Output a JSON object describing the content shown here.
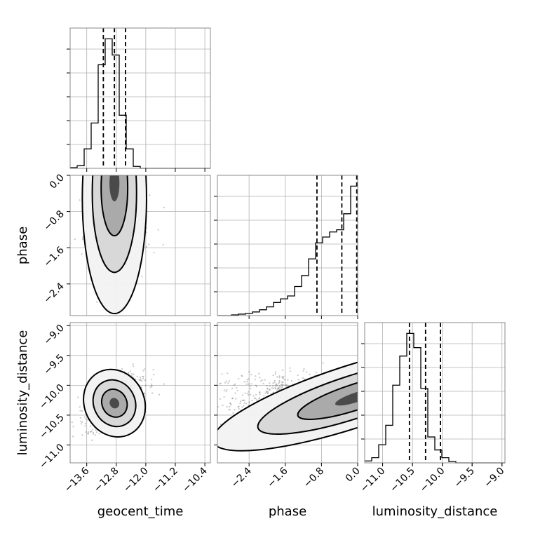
{
  "chart_data": {
    "type": "corner",
    "parameters": [
      "geocent_time",
      "phase",
      "luminosity_distance"
    ],
    "axes": {
      "geocent_time": {
        "label": "geocent_time",
        "range": [
          -14.05,
          -10.25
        ],
        "ticks": [
          -13.6,
          -12.8,
          -12.0,
          -11.2,
          -10.4
        ],
        "tick_labels": [
          "−13.6",
          "−12.8",
          "−12.0",
          "−11.2",
          "−10.4"
        ]
      },
      "phase": {
        "label": "phase",
        "range": [
          -3.1,
          0.0
        ],
        "ticks": [
          -2.4,
          -1.6,
          -0.8,
          0.0
        ],
        "tick_labels": [
          "−2.4",
          "−1.6",
          "−0.8",
          "0.0"
        ]
      },
      "luminosity_distance": {
        "label": "luminosity_distance",
        "range": [
          -11.3,
          -8.95
        ],
        "ticks": [
          -11.0,
          -10.5,
          -10.0,
          -9.5,
          -9.0
        ],
        "tick_labels": [
          "−11.0",
          "−10.5",
          "−10.0",
          "−9.5",
          "−9.0"
        ]
      }
    },
    "histograms": {
      "geocent_time": {
        "edges": [
          -14.05,
          -13.86,
          -13.67,
          -13.48,
          -13.29,
          -13.1,
          -12.91,
          -12.72,
          -12.53,
          -12.34,
          -12.15,
          -11.96,
          -11.77,
          -11.58,
          -11.39,
          -11.2,
          -11.01,
          -10.82,
          -10.63,
          -10.44,
          -10.25
        ],
        "counts": [
          1,
          4,
          30,
          70,
          160,
          200,
          175,
          82,
          30,
          3,
          0,
          0,
          0,
          0,
          0,
          0,
          0,
          0,
          0,
          0
        ],
        "quantiles": [
          -13.15,
          -12.85,
          -12.55
        ]
      },
      "phase": {
        "edges": [
          -3.1,
          -2.945,
          -2.79,
          -2.635,
          -2.48,
          -2.325,
          -2.17,
          -2.015,
          -1.86,
          -1.705,
          -1.55,
          -1.395,
          -1.24,
          -1.085,
          -0.93,
          -0.775,
          -0.62,
          -0.465,
          -0.31,
          -0.155,
          0.0
        ],
        "counts": [
          0,
          0,
          1,
          2,
          3,
          5,
          8,
          12,
          18,
          23,
          27,
          40,
          55,
          78,
          100,
          108,
          115,
          118,
          140,
          178
        ],
        "quantiles": [
          -0.9,
          -0.35,
          -0.02
        ]
      },
      "luminosity_distance": {
        "edges": [
          -11.3,
          -11.1825,
          -11.065,
          -10.9475,
          -10.83,
          -10.7125,
          -10.595,
          -10.4775,
          -10.36,
          -10.2425,
          -10.125,
          -10.0075,
          -9.89,
          -9.7725,
          -9.655,
          -9.5375,
          -9.42,
          -9.3025,
          -9.185,
          -9.0675,
          -8.95
        ],
        "counts": [
          3,
          8,
          28,
          58,
          120,
          165,
          200,
          178,
          115,
          40,
          20,
          8,
          2,
          0,
          0,
          0,
          0,
          0,
          0,
          0
        ],
        "quantiles": [
          -10.55,
          -10.28,
          -10.03
        ]
      }
    },
    "joint": [
      {
        "x": "geocent_time",
        "y": "phase",
        "center": [
          -12.85,
          -0.12
        ],
        "spread": [
          0.3,
          0.55
        ],
        "rho": 0.0,
        "levels": [
          "0.39",
          "0.86",
          "0.99"
        ]
      },
      {
        "x": "geocent_time",
        "y": "luminosity_distance",
        "center": [
          -12.85,
          -10.3
        ],
        "spread": [
          0.28,
          0.2
        ],
        "rho": 0.65,
        "levels": [
          "0.39",
          "0.86",
          "0.99"
        ]
      },
      {
        "x": "phase",
        "y": "luminosity_distance",
        "center": [
          -0.15,
          -10.2
        ],
        "spread": [
          0.55,
          0.18
        ],
        "rho": 0.45,
        "levels": [
          "0.39",
          "0.86",
          "0.99"
        ]
      }
    ],
    "grid": true,
    "quantile_lines": "dashed"
  }
}
